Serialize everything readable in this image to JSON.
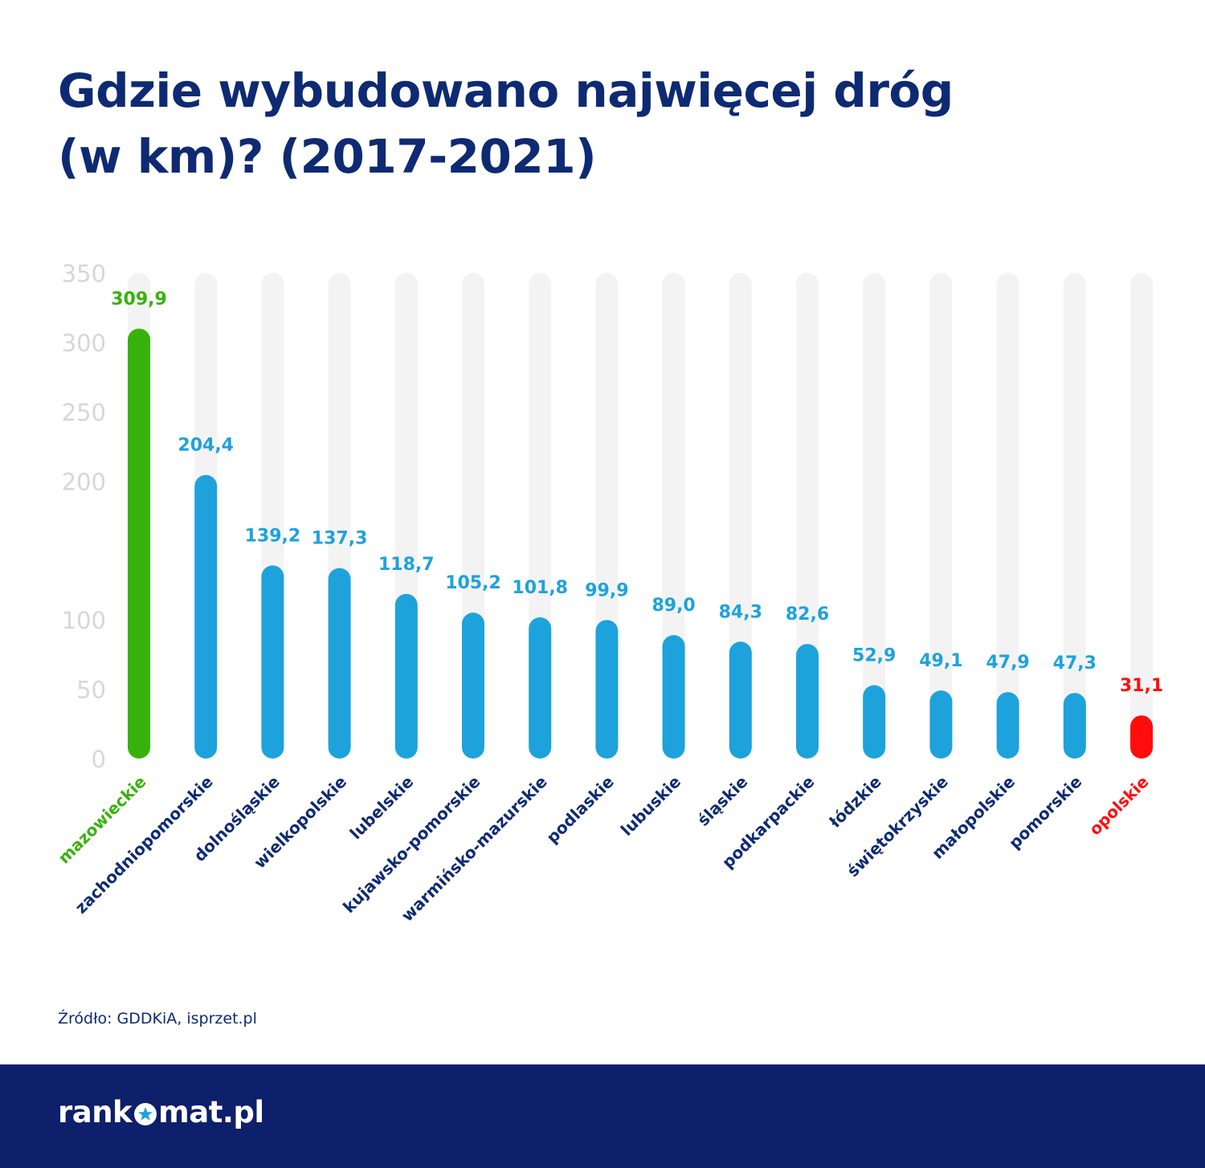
{
  "title_lines": [
    "Gdzie wybudowano najwięcej dróg",
    "(w km)? (2017-2021)"
  ],
  "source": "Źródło: GDDKiA, isprzet.pl",
  "logo": {
    "before": "rank",
    "after": "mat.pl"
  },
  "colors": {
    "title": "#0d2a73",
    "bar_default": "#1ea2dc",
    "bar_highest": "#37b20c",
    "bar_lowest": "#ff0d0d",
    "track": "#f3f3f3",
    "axis_tick": "#d7d7d7",
    "category_default": "#0d2a73",
    "footer": "#0e1f6b"
  },
  "chart_data": {
    "type": "bar",
    "title": "Gdzie wybudowano najwięcej dróg (w km)? (2017-2021)",
    "ylim": [
      0,
      350
    ],
    "yticks": [
      0,
      50,
      100,
      150,
      200,
      250,
      300,
      350
    ],
    "ytick_labels": [
      "0",
      "50",
      "100",
      "",
      "200",
      "250",
      "300",
      "350"
    ],
    "grid": false,
    "legend": "none",
    "categories": [
      "mazowieckie",
      "zachodniopomorskie",
      "dolnośląskie",
      "wielkopolskie",
      "lubelskie",
      "kujawsko-pomorskie",
      "warmińsko-mazurskie",
      "podlaskie",
      "lubuskie",
      "śląskie",
      "podkarpackie",
      "łódzkie",
      "świętokrzyskie",
      "małopolskie",
      "pomorskie",
      "opolskie"
    ],
    "values": [
      309.9,
      204.4,
      139.2,
      137.3,
      118.7,
      105.2,
      101.8,
      99.9,
      89.0,
      84.3,
      82.6,
      52.9,
      49.1,
      47.9,
      47.3,
      31.1
    ],
    "value_labels": [
      "309,9",
      "204,4",
      "139,2",
      "137,3",
      "118,7",
      "105,2",
      "101,8",
      "99,9",
      "89,0",
      "84,3",
      "82,6",
      "52,9",
      "49,1",
      "47,9",
      "47,3",
      "31,1"
    ],
    "highlight": {
      "highest": "mazowieckie",
      "lowest": "opolskie"
    }
  }
}
